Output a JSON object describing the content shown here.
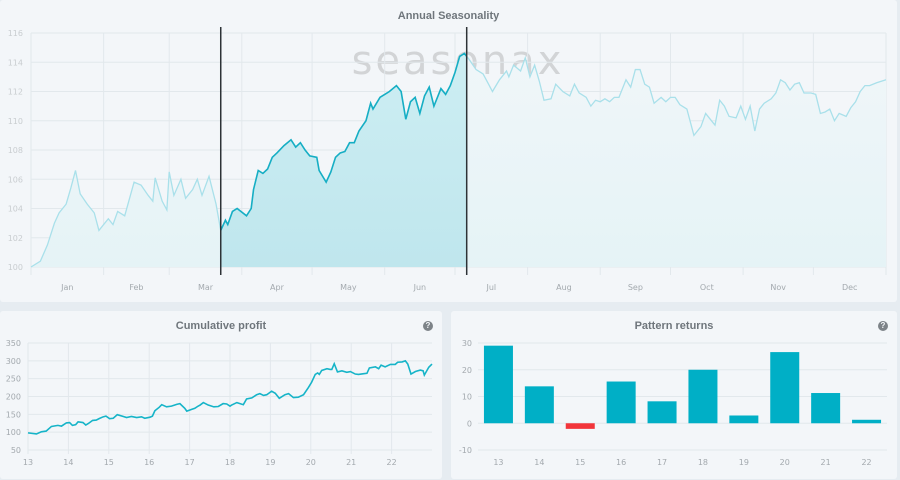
{
  "logo": "seasonax",
  "help_icon": "?",
  "chart_data": [
    {
      "type": "area",
      "title": "Annual Seasonality",
      "xlabel": "",
      "ylabel": "",
      "ylim": [
        100,
        116
      ],
      "yticks": [
        "100",
        "102",
        "104",
        "106",
        "108",
        "110",
        "112",
        "114",
        "116"
      ],
      "month_labels": [
        "Jan",
        "Feb",
        "Mar",
        "Apr",
        "May",
        "Jun",
        "Jul",
        "Aug",
        "Sep",
        "Oct",
        "Nov",
        "Dec"
      ],
      "xlim_days": [
        0,
        365
      ],
      "highlight_days": [
        81,
        186
      ],
      "grid": true,
      "colors": {
        "highlight": "#16aec4",
        "faded": "#a9e0ea"
      },
      "points": [
        [
          0,
          100
        ],
        [
          4,
          100.4
        ],
        [
          7,
          101.5
        ],
        [
          10,
          103
        ],
        [
          12,
          103.7
        ],
        [
          15,
          104.3
        ],
        [
          17,
          105.4
        ],
        [
          19,
          106.6
        ],
        [
          21,
          105
        ],
        [
          24,
          104.3
        ],
        [
          27,
          103.7
        ],
        [
          29,
          102.5
        ],
        [
          33,
          103.3
        ],
        [
          35,
          102.9
        ],
        [
          37,
          103.8
        ],
        [
          40,
          103.5
        ],
        [
          44,
          105.8
        ],
        [
          47,
          105.6
        ],
        [
          50,
          104.9
        ],
        [
          52,
          104.5
        ],
        [
          53,
          106.1
        ],
        [
          56,
          104.5
        ],
        [
          58,
          103.9
        ],
        [
          59,
          106.5
        ],
        [
          61,
          104.9
        ],
        [
          64,
          106
        ],
        [
          66,
          104.7
        ],
        [
          69,
          105.3
        ],
        [
          71,
          106
        ],
        [
          73,
          104.9
        ],
        [
          76,
          106.2
        ],
        [
          79,
          104.3
        ],
        [
          81,
          102.5
        ],
        [
          83,
          103.2
        ],
        [
          84,
          102.9
        ],
        [
          86,
          103.8
        ],
        [
          88,
          104
        ],
        [
          92,
          103.5
        ],
        [
          94,
          104
        ],
        [
          95,
          105.3
        ],
        [
          97,
          106.6
        ],
        [
          99,
          106.4
        ],
        [
          101,
          106.7
        ],
        [
          103,
          107.5
        ],
        [
          105,
          107.8
        ],
        [
          108,
          108.3
        ],
        [
          111,
          108.7
        ],
        [
          113,
          108.2
        ],
        [
          115,
          108.5
        ],
        [
          117,
          108
        ],
        [
          119,
          107.6
        ],
        [
          122,
          107.5
        ],
        [
          123,
          106.6
        ],
        [
          126,
          105.8
        ],
        [
          128,
          106.5
        ],
        [
          130,
          107.5
        ],
        [
          132,
          107.8
        ],
        [
          134,
          107.9
        ],
        [
          136,
          108.5
        ],
        [
          138,
          108.5
        ],
        [
          140,
          109.3
        ],
        [
          143,
          110
        ],
        [
          145,
          111.2
        ],
        [
          146,
          110.8
        ],
        [
          149,
          111.6
        ],
        [
          151,
          111.8
        ],
        [
          153,
          112
        ],
        [
          156,
          112.4
        ],
        [
          158,
          112
        ],
        [
          160,
          110.1
        ],
        [
          162,
          111.3
        ],
        [
          164,
          111.6
        ],
        [
          166,
          110.5
        ],
        [
          168,
          111.7
        ],
        [
          170,
          112.3
        ],
        [
          172,
          111
        ],
        [
          175,
          112.2
        ],
        [
          177,
          111.8
        ],
        [
          179,
          112.4
        ],
        [
          181,
          113.3
        ],
        [
          183,
          114.4
        ],
        [
          185,
          114.6
        ],
        [
          187,
          114.2
        ],
        [
          190,
          113.5
        ],
        [
          193,
          113.2
        ],
        [
          195,
          112.6
        ],
        [
          197,
          112
        ],
        [
          200,
          112.8
        ],
        [
          203,
          113.4
        ],
        [
          204,
          113
        ],
        [
          206,
          113.8
        ],
        [
          209,
          113.4
        ],
        [
          211,
          114.3
        ],
        [
          213,
          113
        ],
        [
          215,
          113.8
        ],
        [
          217,
          112.7
        ],
        [
          219,
          111.4
        ],
        [
          222,
          111.5
        ],
        [
          224,
          112.5
        ],
        [
          227,
          112
        ],
        [
          230,
          111.7
        ],
        [
          232,
          112.5
        ],
        [
          234,
          111.9
        ],
        [
          237,
          111.6
        ],
        [
          239,
          111
        ],
        [
          241,
          111.4
        ],
        [
          243,
          111.3
        ],
        [
          245,
          111.5
        ],
        [
          247,
          111.3
        ],
        [
          249,
          111.6
        ],
        [
          251,
          111.6
        ],
        [
          254,
          112.8
        ],
        [
          256,
          112.3
        ],
        [
          258,
          113.5
        ],
        [
          260,
          113.5
        ],
        [
          262,
          112.5
        ],
        [
          264,
          112.3
        ],
        [
          266,
          111.2
        ],
        [
          269,
          111.6
        ],
        [
          271,
          111.3
        ],
        [
          273,
          111.6
        ],
        [
          275,
          111.6
        ],
        [
          277,
          111.1
        ],
        [
          280,
          110.8
        ],
        [
          283,
          109
        ],
        [
          286,
          109.6
        ],
        [
          288,
          110.5
        ],
        [
          290,
          110.1
        ],
        [
          292,
          109.7
        ],
        [
          294,
          111.4
        ],
        [
          296,
          111
        ],
        [
          298,
          110.3
        ],
        [
          301,
          110.2
        ],
        [
          303,
          111
        ],
        [
          305,
          110.1
        ],
        [
          307,
          111
        ],
        [
          309,
          109.3
        ],
        [
          311,
          110.8
        ],
        [
          313,
          111.2
        ],
        [
          316,
          111.5
        ],
        [
          318,
          111.9
        ],
        [
          320,
          112.8
        ],
        [
          322,
          112.6
        ],
        [
          324,
          112.1
        ],
        [
          326,
          112.5
        ],
        [
          328,
          112.6
        ],
        [
          330,
          111.9
        ],
        [
          333,
          111.9
        ],
        [
          335,
          111.8
        ],
        [
          337,
          110.5
        ],
        [
          339,
          110.6
        ],
        [
          341,
          110.8
        ],
        [
          343,
          110
        ],
        [
          345,
          110.5
        ],
        [
          348,
          110.3
        ],
        [
          350,
          110.9
        ],
        [
          352,
          111.3
        ],
        [
          354,
          112
        ],
        [
          356,
          112.4
        ],
        [
          358,
          112.4
        ],
        [
          361,
          112.6
        ],
        [
          365,
          112.8
        ]
      ]
    },
    {
      "type": "line",
      "title": "Cumulative profit",
      "xlabel": "",
      "ylabel": "",
      "ylim": [
        50,
        350
      ],
      "xlim": [
        13,
        23
      ],
      "yticks": [
        "50",
        "100",
        "150",
        "200",
        "250",
        "300",
        "350"
      ],
      "xticks": [
        "13",
        "14",
        "15",
        "16",
        "17",
        "18",
        "19",
        "20",
        "21",
        "22"
      ],
      "grid": true,
      "color": "#16b4c8",
      "points": [
        [
          13.0,
          98
        ],
        [
          13.21,
          95
        ],
        [
          13.33,
          101
        ],
        [
          13.45,
          103
        ],
        [
          13.58,
          116
        ],
        [
          13.74,
          119
        ],
        [
          13.83,
          117
        ],
        [
          13.95,
          126
        ],
        [
          14.03,
          127
        ],
        [
          14.1,
          119
        ],
        [
          14.18,
          121
        ],
        [
          14.24,
          129
        ],
        [
          14.36,
          127
        ],
        [
          14.43,
          120
        ],
        [
          14.49,
          124
        ],
        [
          14.6,
          133
        ],
        [
          14.69,
          134
        ],
        [
          14.76,
          138
        ],
        [
          14.86,
          143
        ],
        [
          14.93,
          145
        ],
        [
          15.02,
          138
        ],
        [
          15.11,
          139
        ],
        [
          15.21,
          149
        ],
        [
          15.36,
          144
        ],
        [
          15.44,
          141
        ],
        [
          15.56,
          144
        ],
        [
          15.69,
          141
        ],
        [
          15.81,
          143
        ],
        [
          15.89,
          139
        ],
        [
          16.02,
          142
        ],
        [
          16.08,
          145
        ],
        [
          16.14,
          160
        ],
        [
          16.25,
          170
        ],
        [
          16.31,
          177
        ],
        [
          16.43,
          171
        ],
        [
          16.55,
          173
        ],
        [
          16.68,
          178
        ],
        [
          16.76,
          180
        ],
        [
          16.88,
          167
        ],
        [
          16.93,
          159
        ],
        [
          17.05,
          164
        ],
        [
          17.13,
          167
        ],
        [
          17.21,
          173
        ],
        [
          17.26,
          176
        ],
        [
          17.34,
          183
        ],
        [
          17.46,
          176
        ],
        [
          17.6,
          171
        ],
        [
          17.71,
          172
        ],
        [
          17.83,
          180
        ],
        [
          17.92,
          179
        ],
        [
          18.0,
          173
        ],
        [
          18.04,
          176
        ],
        [
          18.17,
          183
        ],
        [
          18.33,
          177
        ],
        [
          18.41,
          193
        ],
        [
          18.54,
          196
        ],
        [
          18.66,
          205
        ],
        [
          18.74,
          208
        ],
        [
          18.83,
          203
        ],
        [
          18.91,
          205
        ],
        [
          19.03,
          215
        ],
        [
          19.12,
          209
        ],
        [
          19.22,
          195
        ],
        [
          19.36,
          205
        ],
        [
          19.45,
          208
        ],
        [
          19.57,
          197
        ],
        [
          19.69,
          198
        ],
        [
          19.82,
          205
        ],
        [
          19.94,
          225
        ],
        [
          20.02,
          240
        ],
        [
          20.11,
          262
        ],
        [
          20.17,
          266
        ],
        [
          20.21,
          262
        ],
        [
          20.27,
          273
        ],
        [
          20.4,
          278
        ],
        [
          20.48,
          276
        ],
        [
          20.52,
          276
        ],
        [
          20.58,
          292
        ],
        [
          20.66,
          269
        ],
        [
          20.77,
          272
        ],
        [
          20.89,
          268
        ],
        [
          20.98,
          270
        ],
        [
          21.1,
          263
        ],
        [
          21.18,
          262
        ],
        [
          21.31,
          264
        ],
        [
          21.39,
          265
        ],
        [
          21.45,
          280
        ],
        [
          21.6,
          283
        ],
        [
          21.68,
          278
        ],
        [
          21.74,
          288
        ],
        [
          21.84,
          283
        ],
        [
          21.97,
          290
        ],
        [
          22.09,
          290
        ],
        [
          22.15,
          296
        ],
        [
          22.26,
          297
        ],
        [
          22.34,
          300
        ],
        [
          22.4,
          291
        ],
        [
          22.48,
          263
        ],
        [
          22.59,
          270
        ],
        [
          22.71,
          274
        ],
        [
          22.78,
          272
        ],
        [
          22.81,
          260
        ],
        [
          22.92,
          282
        ],
        [
          23.0,
          291
        ]
      ]
    },
    {
      "type": "bar",
      "title": "Pattern returns",
      "xlabel": "",
      "ylabel": "",
      "ylim": [
        -10,
        30
      ],
      "yticks": [
        "-10",
        "0",
        "10",
        "20",
        "30"
      ],
      "categories": [
        "13",
        "14",
        "15",
        "16",
        "17",
        "18",
        "19",
        "20",
        "21",
        "22"
      ],
      "values": [
        29,
        13.8,
        -2.1,
        15.6,
        8.2,
        20,
        2.9,
        26.6,
        11.3,
        1.3
      ],
      "grid": true,
      "colors": {
        "positive": "#00afc6",
        "negative": "#f2353b"
      }
    }
  ]
}
